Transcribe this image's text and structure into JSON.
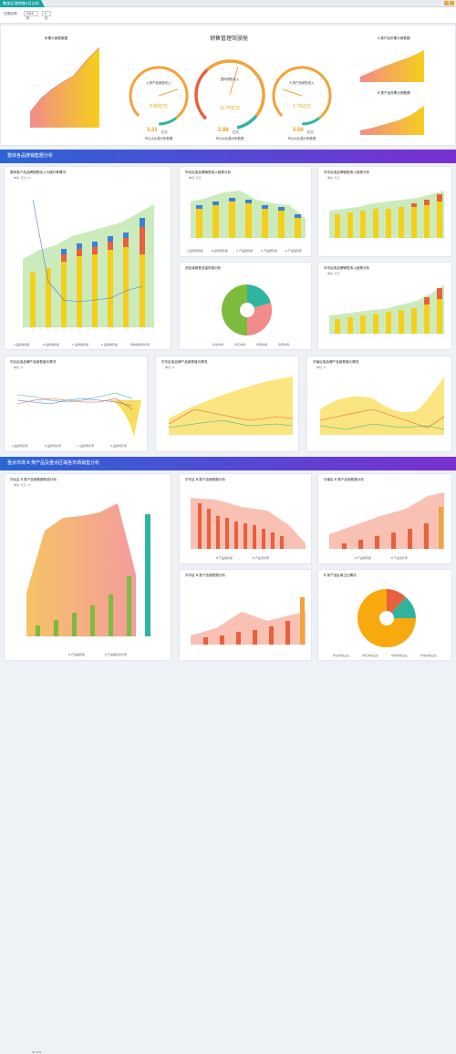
{
  "app": {
    "title": "整体区域销售4月分析",
    "icons": [
      "gear-icon",
      "close-icon"
    ]
  },
  "filter": {
    "label": "日期选择:",
    "year": "2019年",
    "month": "4月"
  },
  "summary": {
    "title": "销售管理驾驶舱",
    "gauges": [
      {
        "name": "A 类产品销售收入",
        "value": "8.89亿元",
        "sub": "同比大幅增长",
        "amount": "3.31",
        "unit": "亿元",
        "caption": "环比大比重分析数据"
      },
      {
        "name": "整体销售收入",
        "value": "11.79亿元",
        "sub": "",
        "amount": "2.88",
        "unit": "亿元",
        "caption": "环比大比重分析数据"
      },
      {
        "name": "B 类产品销售收入",
        "value": "1.76亿元",
        "sub": "",
        "amount": "5.59",
        "unit": "亿元",
        "caption": "环比大比重分析数据"
      }
    ],
    "left_chart": {
      "title": "年累计销售数据",
      "labels": [
        "1,089.9",
        "3,012",
        "4,137",
        "5,379",
        "6,378",
        "9,198",
        "11,662"
      ]
    },
    "right_top": {
      "title": "A 类产品年累计销售额",
      "labels": [
        "3,741",
        "4,113",
        "5,234",
        "6,578",
        "7,892",
        "9,212"
      ]
    },
    "right_bottom": {
      "title": "B 类产品年累计销售额",
      "labels": [
        "0,778",
        "1,002",
        "1,256",
        "1,530",
        "1,802",
        "2,088"
      ]
    }
  },
  "sections": [
    {
      "title": "整体各品牌销售额分析"
    },
    {
      "title": "重点市场 B 类产品及重点区域各市场销售分析"
    }
  ],
  "panels": {
    "p1": {
      "title": "整体各产品品牌销售收入与增长率情况",
      "unit": "单位: 亿元 / %",
      "legend": [
        "A 品牌销售额",
        "B 品牌销售额",
        "C 品牌销售额",
        "D 品牌销售额",
        "整体销售增长率"
      ]
    },
    "p2": {
      "title": "华北区各品牌销售收入趋势分析",
      "unit": "单位: 亿元",
      "legend": [
        "A 品牌销售额",
        "B 品牌销售额",
        "C 产品销售额",
        "D 产品销售额",
        "E 产品销售额"
      ]
    },
    "p3": {
      "title": "华东区各品牌销售收入趋势分析",
      "unit": "单位: 亿元"
    },
    "p4": {
      "title": "西区域销售总量构成分析",
      "legend": [
        "华北市场",
        "华东市场",
        "华南市场",
        "华西市场"
      ]
    },
    "p5": {
      "title": "华中区各品牌销售收入趋势分析",
      "unit": "单位: 亿元"
    },
    "p6": {
      "title": "华北区各品牌产品销售增长情况",
      "unit": "单位: %",
      "legend": [
        "A 品牌增长率",
        "B 品牌增长率",
        "C 品牌增长率",
        "D 品牌增长率"
      ]
    },
    "p7": {
      "title": "华东区各品牌产品销售增长情况",
      "unit": "单位: %"
    },
    "p8": {
      "title": "华南区各品牌产品销售增长情况",
      "unit": "单位: %"
    },
    "p9": {
      "title": "华北区 B 类产品销售额构成分析",
      "unit": "单位: 亿元 / %",
      "legend": [
        "B 产品销售额",
        "B 产品销售增长率"
      ],
      "labels": [
        "31.47%",
        "148.71%",
        "165.84%",
        "166.98%",
        "190.53%",
        "196.38%",
        "78.54%"
      ]
    },
    "p10": {
      "title": "华东区 B 类产品销售额分析",
      "legend": [
        "B 产品销售额",
        "B 产品增长率"
      ]
    },
    "p11": {
      "title": "华南区 B 类产品销售额分析",
      "legend": [
        "B 产品销售额",
        "B 产品增长率"
      ]
    },
    "p12": {
      "title": "华中区 B 类产品销售额分析"
    },
    "p13": {
      "title": "B 类产品区域占比情况",
      "legend": [
        "华北市场占比",
        "华东市场占比",
        "华南市场占比",
        "华中市场占比"
      ]
    }
  },
  "months": [
    "2018-07",
    "2018-08",
    "2018-09",
    "2018-10",
    "2018-11",
    "2018-12",
    "2019-01",
    "2019-02",
    "2019-03",
    "2019-04"
  ],
  "colors": {
    "yellow": "#f5cf1a",
    "orange": "#e8603c",
    "blue": "#3d7fd9",
    "teal": "#2fb59f",
    "green": "#7dbb3e",
    "purple": "#2a66d6"
  }
}
